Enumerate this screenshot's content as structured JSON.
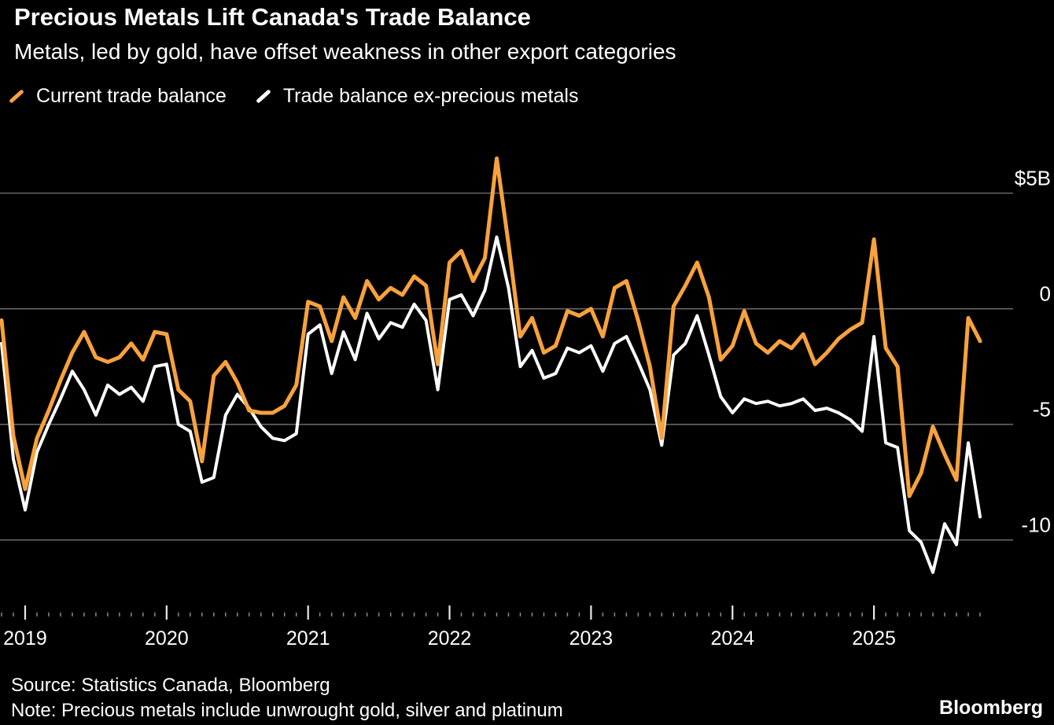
{
  "header": {
    "title": "Precious Metals Lift Canada's Trade Balance",
    "subtitle": "Metals, led by gold, have offset weakness in other export categories"
  },
  "legend": [
    {
      "label": "Current trade balance",
      "color": "#F8A23C"
    },
    {
      "label": "Trade balance ex-precious metals",
      "color": "#FFFFFF"
    }
  ],
  "footer": {
    "source": "Source: Statistics Canada, Bloomberg",
    "note": "Note: Precious metals include unwrought gold, silver and platinum",
    "brand": "Bloomberg"
  },
  "chart_data": {
    "type": "line",
    "title": "Precious Metals Lift Canada's Trade Balance",
    "subtitle": "Metals, led by gold, have offset weakness in other export categories",
    "unit": "CAD billions",
    "start": {
      "year": 2018,
      "month": 11
    },
    "frequency": "monthly",
    "ylim": [
      -12.9,
      7.3
    ],
    "grid": true,
    "legend_position": "top-left",
    "y_ticks": [
      {
        "value": 5,
        "label": "$5B"
      },
      {
        "value": 0,
        "label": "0"
      },
      {
        "value": -5,
        "label": "-5"
      },
      {
        "value": -10,
        "label": "-10"
      }
    ],
    "x_tick_years": [
      "2019",
      "2020",
      "2021",
      "2022",
      "2023",
      "2024",
      "2025"
    ],
    "colors": {
      "current": "#F8A23C",
      "ex_metals": "#FFFFFF",
      "grid": "#676767",
      "major_tick": "#e8e8e8",
      "minor_tick": "#8a8a8a",
      "text": "#FFFFFF",
      "background": "#000000"
    },
    "series": [
      {
        "name": "Current trade balance",
        "color_key": "current",
        "values": [
          -0.5,
          -5.5,
          -7.8,
          -5.6,
          -4.4,
          -3.1,
          -1.9,
          -1.0,
          -2.1,
          -2.3,
          -2.1,
          -1.5,
          -2.2,
          -1.0,
          -1.1,
          -3.5,
          -4.0,
          -6.6,
          -2.9,
          -2.3,
          -3.2,
          -4.4,
          -4.5,
          -4.5,
          -4.2,
          -3.3,
          0.3,
          0.1,
          -1.4,
          0.5,
          -0.4,
          1.2,
          0.4,
          0.9,
          0.6,
          1.4,
          1.0,
          -2.4,
          2.0,
          2.5,
          1.2,
          2.2,
          6.5,
          2.8,
          -1.2,
          -0.4,
          -1.9,
          -1.6,
          -0.1,
          -0.3,
          0.0,
          -1.2,
          0.9,
          1.2,
          -0.5,
          -2.5,
          -5.6,
          0.1,
          1.0,
          2.0,
          0.5,
          -2.2,
          -1.6,
          -0.1,
          -1.5,
          -1.9,
          -1.4,
          -1.7,
          -1.1,
          -2.4,
          -1.9,
          -1.3,
          -0.9,
          -0.6,
          3.0,
          -1.7,
          -2.5,
          -8.1,
          -7.1,
          -5.1,
          -6.3,
          -7.4,
          -0.4,
          -1.4
        ]
      },
      {
        "name": "Trade balance ex-precious metals",
        "color_key": "ex_metals",
        "values": [
          -1.5,
          -6.5,
          -8.7,
          -6.2,
          -5.0,
          -3.9,
          -2.7,
          -3.5,
          -4.6,
          -3.3,
          -3.7,
          -3.4,
          -4.0,
          -2.5,
          -2.4,
          -5.0,
          -5.3,
          -7.5,
          -7.3,
          -4.6,
          -3.7,
          -4.3,
          -5.1,
          -5.6,
          -5.7,
          -5.4,
          -1.1,
          -0.7,
          -2.8,
          -1.0,
          -2.2,
          -0.2,
          -1.3,
          -0.6,
          -0.8,
          0.2,
          -0.5,
          -3.5,
          0.4,
          0.6,
          -0.3,
          0.8,
          3.1,
          0.9,
          -2.5,
          -1.8,
          -3.0,
          -2.8,
          -1.7,
          -1.9,
          -1.6,
          -2.7,
          -1.5,
          -1.2,
          -2.3,
          -3.5,
          -5.9,
          -2.0,
          -1.5,
          -0.3,
          -2.0,
          -3.8,
          -4.5,
          -3.9,
          -4.1,
          -4.0,
          -4.2,
          -4.1,
          -3.9,
          -4.4,
          -4.3,
          -4.5,
          -4.8,
          -5.3,
          -1.2,
          -5.8,
          -6.0,
          -9.6,
          -10.1,
          -11.4,
          -9.3,
          -10.2,
          -5.8,
          -9.0
        ]
      }
    ]
  }
}
